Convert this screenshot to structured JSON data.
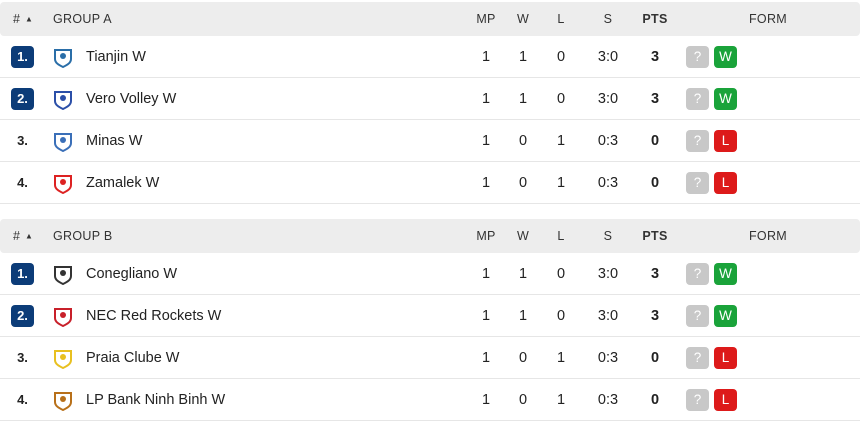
{
  "columns": {
    "rank": "#",
    "sort_icon": "▲",
    "mp": "MP",
    "w": "W",
    "l": "L",
    "s": "S",
    "pts": "PTS",
    "form": "FORM"
  },
  "colors": {
    "rank_highlight": "#0c3c78",
    "win": "#1aa33a",
    "loss": "#dd1a1a",
    "unknown": "#c8c8c8"
  },
  "groups": [
    {
      "title": "GROUP A",
      "rows": [
        {
          "rank": "1.",
          "highlight": true,
          "team": "Tianjin W",
          "logo": "tianjin-logo",
          "logo_color": "#2a6ea8",
          "mp": "1",
          "w": "1",
          "l": "0",
          "s": "3:0",
          "pts": "3",
          "form": [
            "?",
            "W"
          ]
        },
        {
          "rank": "2.",
          "highlight": true,
          "team": "Vero Volley W",
          "logo": "vero-volley-logo",
          "logo_color": "#2b4fa8",
          "mp": "1",
          "w": "1",
          "l": "0",
          "s": "3:0",
          "pts": "3",
          "form": [
            "?",
            "W"
          ]
        },
        {
          "rank": "3.",
          "highlight": false,
          "team": "Minas W",
          "logo": "minas-logo",
          "logo_color": "#3a6fb8",
          "mp": "1",
          "w": "0",
          "l": "1",
          "s": "0:3",
          "pts": "0",
          "form": [
            "?",
            "L"
          ]
        },
        {
          "rank": "4.",
          "highlight": false,
          "team": "Zamalek W",
          "logo": "zamalek-logo",
          "logo_color": "#d22",
          "mp": "1",
          "w": "0",
          "l": "1",
          "s": "0:3",
          "pts": "0",
          "form": [
            "?",
            "L"
          ]
        }
      ]
    },
    {
      "title": "GROUP B",
      "rows": [
        {
          "rank": "1.",
          "highlight": true,
          "team": "Conegliano W",
          "logo": "conegliano-logo",
          "logo_color": "#333",
          "mp": "1",
          "w": "1",
          "l": "0",
          "s": "3:0",
          "pts": "3",
          "form": [
            "?",
            "W"
          ]
        },
        {
          "rank": "2.",
          "highlight": true,
          "team": "NEC Red Rockets W",
          "logo": "nec-red-rockets-logo",
          "logo_color": "#c8202a",
          "mp": "1",
          "w": "1",
          "l": "0",
          "s": "3:0",
          "pts": "3",
          "form": [
            "?",
            "W"
          ]
        },
        {
          "rank": "3.",
          "highlight": false,
          "team": "Praia Clube W",
          "logo": "praia-clube-logo",
          "logo_color": "#e8c020",
          "mp": "1",
          "w": "0",
          "l": "1",
          "s": "0:3",
          "pts": "0",
          "form": [
            "?",
            "L"
          ]
        },
        {
          "rank": "4.",
          "highlight": false,
          "team": "LP Bank Ninh Binh W",
          "logo": "lp-bank-ninh-binh-logo",
          "logo_color": "#b8701a",
          "mp": "1",
          "w": "0",
          "l": "1",
          "s": "0:3",
          "pts": "0",
          "form": [
            "?",
            "L"
          ]
        }
      ]
    }
  ]
}
